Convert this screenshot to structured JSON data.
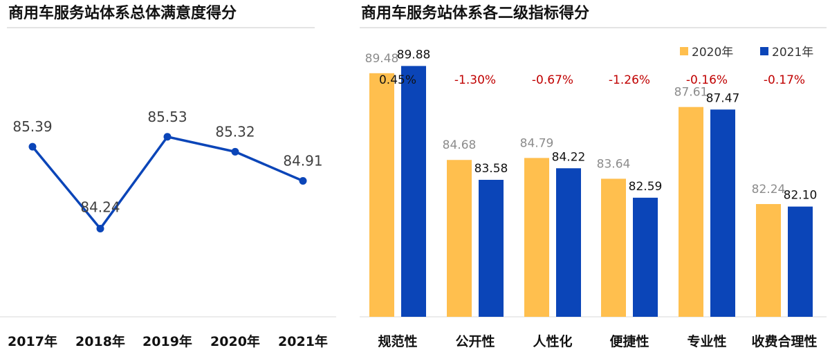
{
  "chart_data": [
    {
      "type": "line",
      "title": "商用车服务站体系总体满意度得分",
      "categories": [
        "2017年",
        "2018年",
        "2019年",
        "2020年",
        "2021年"
      ],
      "values": [
        85.39,
        84.24,
        85.53,
        85.32,
        84.91
      ],
      "value_labels": [
        "85.39",
        "84.24",
        "85.53",
        "85.32",
        "84.91"
      ],
      "ylim": [
        83.0,
        86.5
      ],
      "grid": false,
      "line_color": "#0b45b8"
    },
    {
      "type": "bar",
      "title": "商用车服务站体系各二级指标得分",
      "categories": [
        "规范性",
        "公开性",
        "人性化",
        "便捷性",
        "专业性",
        "收费合理性"
      ],
      "series": [
        {
          "name": "2020年",
          "values": [
            89.48,
            84.68,
            84.79,
            83.64,
            87.61,
            82.24
          ],
          "labels": [
            "89.48",
            "84.68",
            "84.79",
            "83.64",
            "87.61",
            "82.24"
          ],
          "color": "#ffbf4e"
        },
        {
          "name": "2021年",
          "values": [
            89.88,
            83.58,
            84.22,
            82.59,
            87.47,
            82.1
          ],
          "labels": [
            "89.88",
            "83.58",
            "84.22",
            "82.59",
            "87.47",
            "82.10"
          ],
          "color": "#0b45b8"
        }
      ],
      "changes": [
        "0.45%",
        "-1.30%",
        "-0.67%",
        "-1.26%",
        "-0.16%",
        "-0.17%"
      ],
      "change_colors": [
        "#111111",
        "#c00000",
        "#c00000",
        "#c00000",
        "#c00000",
        "#c00000"
      ],
      "ylim": [
        76,
        92
      ],
      "legend": "top-right",
      "grid": false
    }
  ]
}
